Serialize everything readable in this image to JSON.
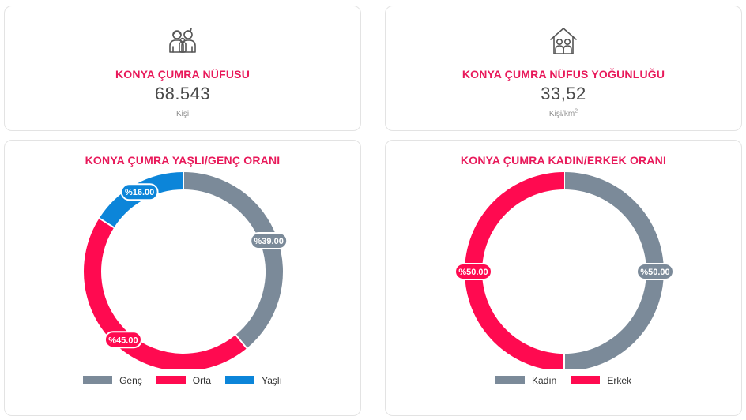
{
  "colors": {
    "accent": "#e8195a",
    "genc": "#7b8a99",
    "orta": "#ff0a50",
    "yasli": "#0c85d9",
    "kadin": "#7b8a99",
    "erkek": "#ff0a50"
  },
  "population": {
    "icon": "family-icon",
    "title": "KONYA ÇUMRA NÜFUSU",
    "value": "68.543",
    "unit": "Kişi"
  },
  "density": {
    "icon": "house-family-icon",
    "title": "KONYA ÇUMRA NÜFUS YOĞUNLUĞU",
    "value": "33,52",
    "unit": "Kişi/km",
    "unit_sup": "2"
  },
  "chart_data": [
    {
      "type": "pie",
      "title": "KONYA ÇUMRA YAŞLI/GENÇ ORANI",
      "categories": [
        "Genç",
        "Orta",
        "Yaşlı"
      ],
      "values": [
        39,
        45,
        16
      ],
      "labels": [
        "%39.00",
        "%45.00",
        "%16.00"
      ],
      "colors": [
        "#7b8a99",
        "#ff0a50",
        "#0c85d9"
      ],
      "legend": "bottom"
    },
    {
      "type": "pie",
      "title": "KONYA ÇUMRA KADIN/ERKEK ORANI",
      "categories": [
        "Kadın",
        "Erkek"
      ],
      "values": [
        50,
        50
      ],
      "labels": [
        "%50.00",
        "%50.00"
      ],
      "colors": [
        "#7b8a99",
        "#ff0a50"
      ],
      "legend": "bottom"
    }
  ]
}
